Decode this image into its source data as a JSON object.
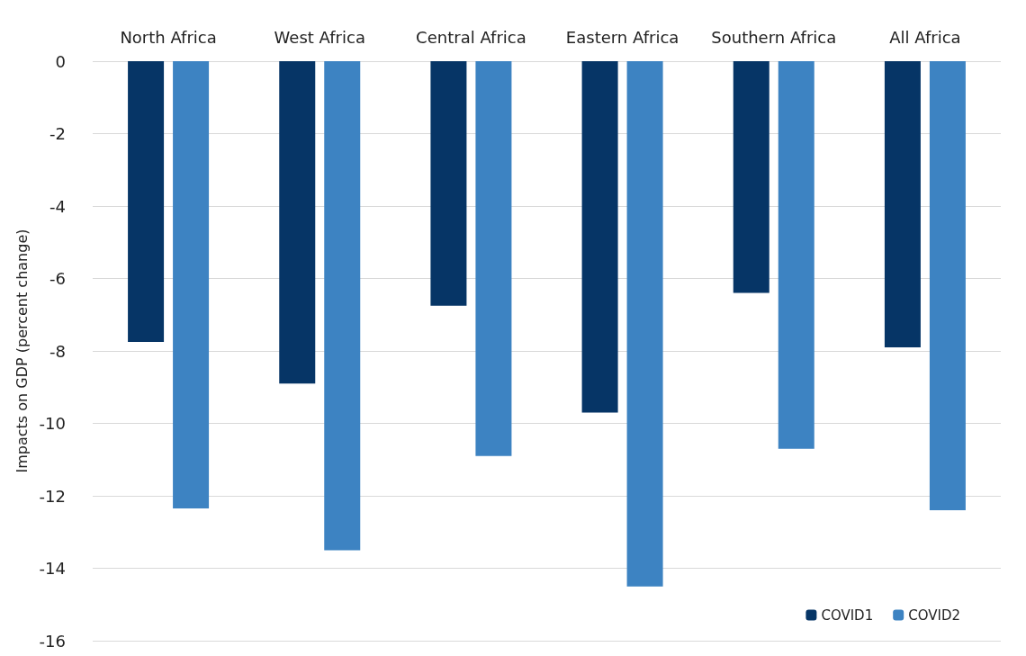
{
  "chart_data": {
    "type": "bar",
    "ylabel": "Impacts on GDP (percent change)",
    "categories": [
      "North Africa",
      "West Africa",
      "Central Africa",
      "Eastern Africa",
      "Southern Africa",
      "All Africa"
    ],
    "series": [
      {
        "name": "COVID1",
        "color": "#063566",
        "values": [
          -7.75,
          -8.9,
          -6.75,
          -9.7,
          -6.4,
          -7.9
        ]
      },
      {
        "name": "COVID2",
        "color": "#3d83c2",
        "values": [
          -12.35,
          -13.5,
          -10.9,
          -14.5,
          -10.7,
          -12.4
        ]
      }
    ],
    "ylim": [
      -16,
      0
    ],
    "yticks": [
      -16,
      -14,
      -12,
      -10,
      -8,
      -6,
      -4,
      -2,
      0
    ],
    "grid": "y",
    "legend": "bottom right"
  }
}
